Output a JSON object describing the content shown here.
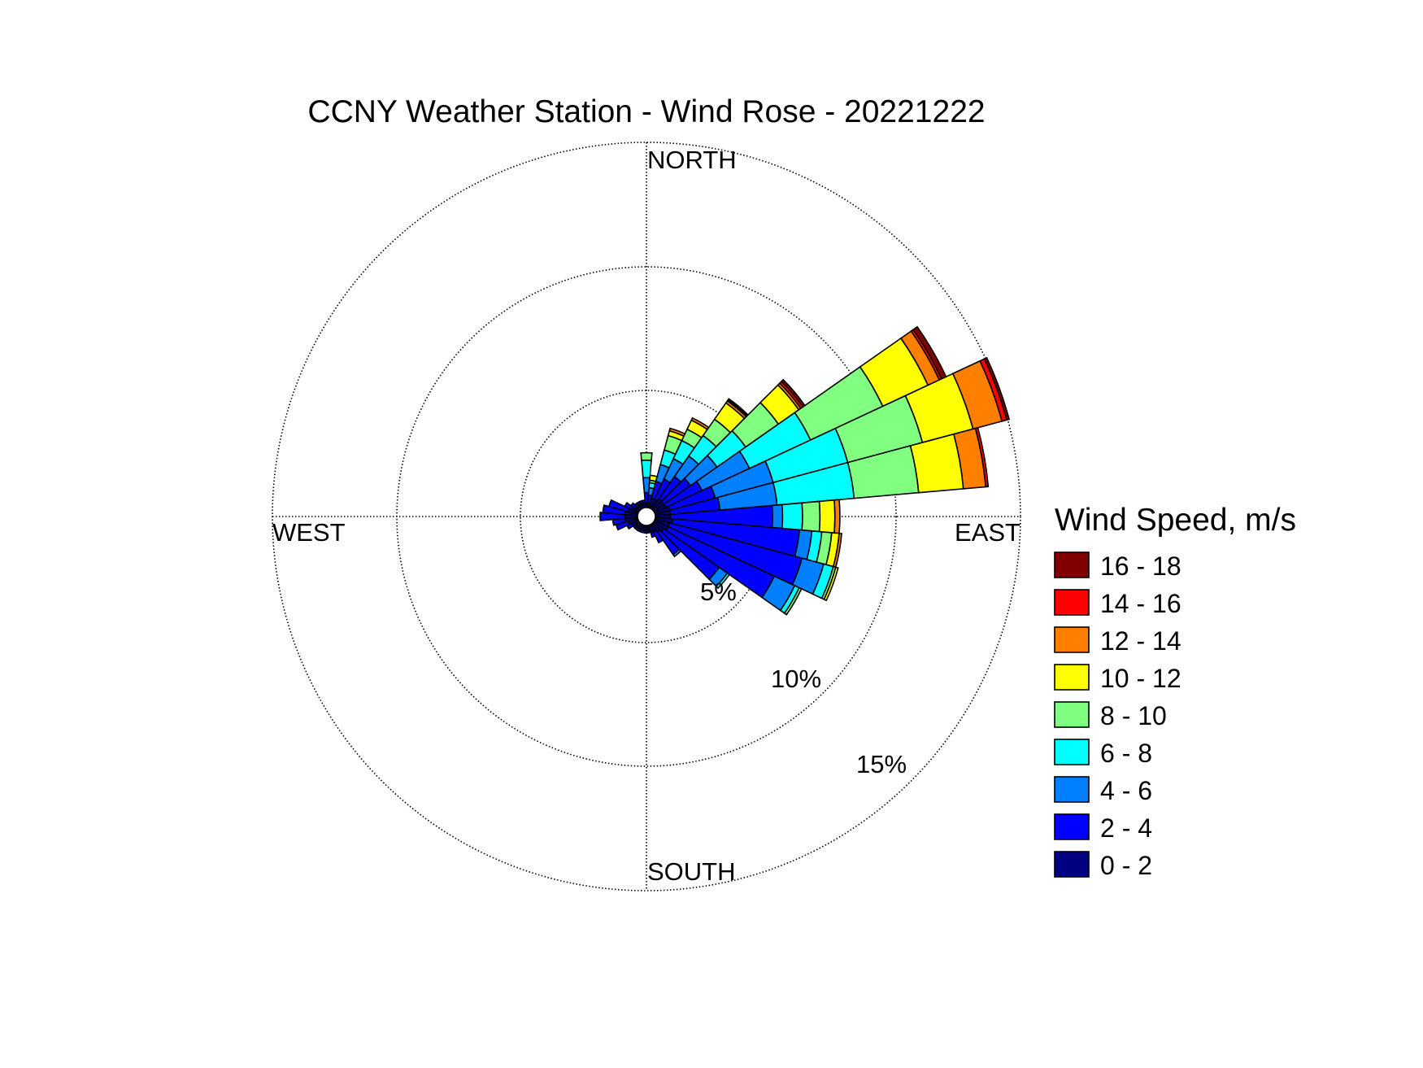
{
  "chart_data": {
    "type": "wind-rose",
    "title": "CCNY Weather Station - Wind Rose - 20221222",
    "direction_labels": {
      "north": "NORTH",
      "east": "EAST",
      "south": "SOUTH",
      "west": "WEST"
    },
    "radial_max_percent": 15,
    "ring_values": [
      5,
      10,
      15
    ],
    "ring_labels": [
      "5%",
      "10%",
      "15%"
    ],
    "grid": true,
    "legend_position": "right",
    "legend": {
      "title": "Wind Speed, m/s",
      "bins": [
        {
          "label": "16 - 18",
          "color": "#800000"
        },
        {
          "label": "14 - 16",
          "color": "#ff0000"
        },
        {
          "label": "12 - 14",
          "color": "#ff8000"
        },
        {
          "label": "10 - 12",
          "color": "#ffff00"
        },
        {
          "label": "8 - 10",
          "color": "#80ff80"
        },
        {
          "label": "6 - 8",
          "color": "#00ffff"
        },
        {
          "label": "4 - 6",
          "color": "#0080ff"
        },
        {
          "label": "2 - 4",
          "color": "#0000ff"
        },
        {
          "label": "0 - 2",
          "color": "#000080"
        }
      ]
    },
    "speed_bin_order_inner_to_outer": [
      "0 - 2",
      "2 - 4",
      "4 - 6",
      "6 - 8",
      "8 - 10",
      "10 - 12",
      "12 - 14",
      "14 - 16",
      "16 - 18"
    ],
    "sector_width_deg": 10,
    "sectors": [
      {
        "direction_deg": 10,
        "cumulative_percent": [
          0.2,
          0.5,
          0.8,
          1.0,
          1.1,
          1.3
        ]
      },
      {
        "direction_deg": 20,
        "cumulative_percent": [
          0.4,
          1.1,
          1.8,
          2.4,
          3.0,
          3.2,
          3.3
        ]
      },
      {
        "direction_deg": 30,
        "cumulative_percent": [
          0.4,
          1.3,
          2.2,
          3.0,
          3.5,
          3.9,
          4.0
        ]
      },
      {
        "direction_deg": 40,
        "cumulative_percent": [
          0.5,
          1.6,
          2.6,
          3.6,
          4.4,
          5.2,
          5.3,
          5.35,
          5.4
        ]
      },
      {
        "direction_deg": 50,
        "cumulative_percent": [
          0.5,
          1.8,
          3.1,
          4.5,
          6.1,
          7.1,
          7.2,
          7.3,
          7.4
        ]
      },
      {
        "direction_deg": 60,
        "cumulative_percent": [
          0.5,
          2.1,
          4.2,
          6.9,
          10.1,
          12.1,
          12.6,
          12.7,
          12.9
        ]
      },
      {
        "direction_deg": 70,
        "cumulative_percent": [
          0.6,
          2.5,
          4.9,
          8.0,
          11.1,
          13.2,
          14.4,
          14.6,
          14.7
        ]
      },
      {
        "direction_deg": 80,
        "cumulative_percent": [
          0.6,
          2.6,
          4.9,
          8.0,
          10.6,
          12.4,
          13.3,
          13.4
        ]
      },
      {
        "direction_deg": 90,
        "cumulative_percent": [
          0.6,
          4.7,
          5.1,
          5.9,
          6.6,
          7.2,
          7.4
        ]
      },
      {
        "direction_deg": 100,
        "cumulative_percent": [
          0.7,
          5.8,
          6.3,
          6.7,
          7.1,
          7.4,
          7.5
        ]
      },
      {
        "direction_deg": 110,
        "cumulative_percent": [
          0.6,
          6.1,
          7.0,
          7.4,
          7.5,
          7.6
        ]
      },
      {
        "direction_deg": 120,
        "cumulative_percent": [
          0.6,
          5.3,
          6.2,
          6.4,
          6.5
        ]
      },
      {
        "direction_deg": 130,
        "cumulative_percent": [
          0.5,
          3.2,
          3.6,
          3.7
        ]
      },
      {
        "direction_deg": 140,
        "cumulative_percent": [
          0.4,
          1.5,
          1.6
        ]
      },
      {
        "direction_deg": 150,
        "cumulative_percent": [
          0.3,
          0.8
        ]
      },
      {
        "direction_deg": 160,
        "cumulative_percent": [
          0.3,
          0.5
        ]
      },
      {
        "direction_deg": 170,
        "cumulative_percent": [
          0.2,
          0.3
        ]
      },
      {
        "direction_deg": 180,
        "cumulative_percent": [
          0.2,
          0.3
        ]
      },
      {
        "direction_deg": 190,
        "cumulative_percent": [
          0.2,
          0.3
        ]
      },
      {
        "direction_deg": 200,
        "cumulative_percent": [
          0.2,
          0.3
        ]
      },
      {
        "direction_deg": 210,
        "cumulative_percent": [
          0.2,
          0.3
        ]
      },
      {
        "direction_deg": 220,
        "cumulative_percent": [
          0.2,
          0.3
        ]
      },
      {
        "direction_deg": 230,
        "cumulative_percent": [
          0.2,
          0.3
        ]
      },
      {
        "direction_deg": 240,
        "cumulative_percent": [
          0.3,
          0.5
        ]
      },
      {
        "direction_deg": 250,
        "cumulative_percent": [
          0.4,
          0.9
        ]
      },
      {
        "direction_deg": 260,
        "cumulative_percent": [
          0.5,
          1.0
        ]
      },
      {
        "direction_deg": 270,
        "cumulative_percent": [
          0.5,
          1.5
        ]
      },
      {
        "direction_deg": 280,
        "cumulative_percent": [
          0.5,
          1.4
        ]
      },
      {
        "direction_deg": 290,
        "cumulative_percent": [
          0.4,
          1.2
        ]
      },
      {
        "direction_deg": 300,
        "cumulative_percent": [
          0.3,
          0.6
        ]
      },
      {
        "direction_deg": 310,
        "cumulative_percent": [
          0.2,
          0.4
        ]
      },
      {
        "direction_deg": 320,
        "cumulative_percent": [
          0.2,
          0.3
        ]
      },
      {
        "direction_deg": 330,
        "cumulative_percent": [
          0.2,
          0.3
        ]
      },
      {
        "direction_deg": 340,
        "cumulative_percent": [
          0.2,
          0.3
        ]
      },
      {
        "direction_deg": 350,
        "cumulative_percent": [
          0.2,
          0.3
        ]
      },
      {
        "direction_deg": 0,
        "cumulative_percent": [
          0.2,
          0.6,
          1.2,
          1.9,
          2.2
        ]
      }
    ]
  }
}
